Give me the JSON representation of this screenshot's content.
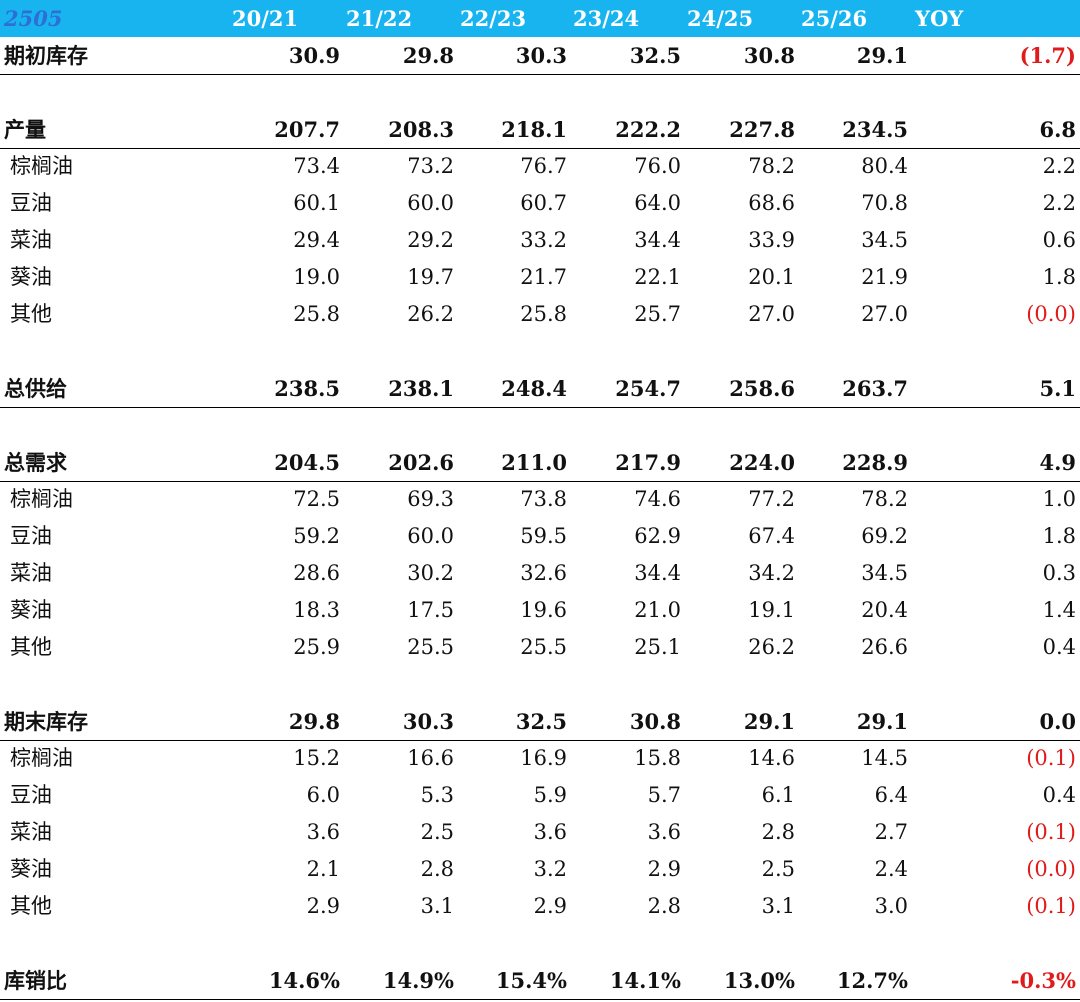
{
  "table": {
    "code": "2505",
    "columns": [
      "20/21",
      "21/22",
      "22/23",
      "23/24",
      "24/25",
      "25/26",
      "YOY"
    ],
    "rows": [
      {
        "label": "期初库存",
        "values": [
          "30.9",
          "29.8",
          "30.3",
          "32.5",
          "30.8",
          "29.1",
          "(1.7)"
        ],
        "bold": true,
        "underline": true,
        "yoy_negative": true
      },
      {
        "label": "产量",
        "values": [
          "207.7",
          "208.3",
          "218.1",
          "222.2",
          "227.8",
          "234.5",
          "6.8"
        ],
        "bold": true,
        "underline": true,
        "yoy_negative": false
      },
      {
        "label": "棕榈油",
        "values": [
          "73.4",
          "73.2",
          "76.7",
          "76.0",
          "78.2",
          "80.4",
          "2.2"
        ],
        "bold": false,
        "underline": false,
        "yoy_negative": false
      },
      {
        "label": "豆油",
        "values": [
          "60.1",
          "60.0",
          "60.7",
          "64.0",
          "68.6",
          "70.8",
          "2.2"
        ],
        "bold": false,
        "underline": false,
        "yoy_negative": false
      },
      {
        "label": "菜油",
        "values": [
          "29.4",
          "29.2",
          "33.2",
          "34.4",
          "33.9",
          "34.5",
          "0.6"
        ],
        "bold": false,
        "underline": false,
        "yoy_negative": false
      },
      {
        "label": "葵油",
        "values": [
          "19.0",
          "19.7",
          "21.7",
          "22.1",
          "20.1",
          "21.9",
          "1.8"
        ],
        "bold": false,
        "underline": false,
        "yoy_negative": false
      },
      {
        "label": "其他",
        "values": [
          "25.8",
          "26.2",
          "25.8",
          "25.7",
          "27.0",
          "27.0",
          "(0.0)"
        ],
        "bold": false,
        "underline": false,
        "yoy_negative": true
      },
      {
        "label": "总供给",
        "values": [
          "238.5",
          "238.1",
          "248.4",
          "254.7",
          "258.6",
          "263.7",
          "5.1"
        ],
        "bold": true,
        "underline": true,
        "yoy_negative": false
      },
      {
        "label": "总需求",
        "values": [
          "204.5",
          "202.6",
          "211.0",
          "217.9",
          "224.0",
          "228.9",
          "4.9"
        ],
        "bold": true,
        "underline": true,
        "yoy_negative": false
      },
      {
        "label": "棕榈油",
        "values": [
          "72.5",
          "69.3",
          "73.8",
          "74.6",
          "77.2",
          "78.2",
          "1.0"
        ],
        "bold": false,
        "underline": false,
        "yoy_negative": false
      },
      {
        "label": "豆油",
        "values": [
          "59.2",
          "60.0",
          "59.5",
          "62.9",
          "67.4",
          "69.2",
          "1.8"
        ],
        "bold": false,
        "underline": false,
        "yoy_negative": false
      },
      {
        "label": "菜油",
        "values": [
          "28.6",
          "30.2",
          "32.6",
          "34.4",
          "34.2",
          "34.5",
          "0.3"
        ],
        "bold": false,
        "underline": false,
        "yoy_negative": false
      },
      {
        "label": "葵油",
        "values": [
          "18.3",
          "17.5",
          "19.6",
          "21.0",
          "19.1",
          "20.4",
          "1.4"
        ],
        "bold": false,
        "underline": false,
        "yoy_negative": false
      },
      {
        "label": "其他",
        "values": [
          "25.9",
          "25.5",
          "25.5",
          "25.1",
          "26.2",
          "26.6",
          "0.4"
        ],
        "bold": false,
        "underline": false,
        "yoy_negative": false
      },
      {
        "label": "期末库存",
        "values": [
          "29.8",
          "30.3",
          "32.5",
          "30.8",
          "29.1",
          "29.1",
          "0.0"
        ],
        "bold": true,
        "underline": true,
        "yoy_negative": false
      },
      {
        "label": "棕榈油",
        "values": [
          "15.2",
          "16.6",
          "16.9",
          "15.8",
          "14.6",
          "14.5",
          "(0.1)"
        ],
        "bold": false,
        "underline": false,
        "yoy_negative": true
      },
      {
        "label": "豆油",
        "values": [
          "6.0",
          "5.3",
          "5.9",
          "5.7",
          "6.1",
          "6.4",
          "0.4"
        ],
        "bold": false,
        "underline": false,
        "yoy_negative": false
      },
      {
        "label": "菜油",
        "values": [
          "3.6",
          "2.5",
          "3.6",
          "3.6",
          "2.8",
          "2.7",
          "(0.1)"
        ],
        "bold": false,
        "underline": false,
        "yoy_negative": true
      },
      {
        "label": "葵油",
        "values": [
          "2.1",
          "2.8",
          "3.2",
          "2.9",
          "2.5",
          "2.4",
          "(0.0)"
        ],
        "bold": false,
        "underline": false,
        "yoy_negative": true
      },
      {
        "label": "其他",
        "values": [
          "2.9",
          "3.1",
          "2.9",
          "2.8",
          "3.1",
          "3.0",
          "(0.1)"
        ],
        "bold": false,
        "underline": false,
        "yoy_negative": true
      },
      {
        "label": "库销比",
        "values": [
          "14.6%",
          "14.9%",
          "15.4%",
          "14.1%",
          "13.0%",
          "12.7%",
          "-0.3%"
        ],
        "bold": true,
        "underline": true,
        "yoy_negative": true
      }
    ]
  },
  "colors": {
    "header_bg": "#18b4ef",
    "header_text": "#ffffff",
    "code_text": "#2d6fd6",
    "negative": "#e01b1b"
  }
}
